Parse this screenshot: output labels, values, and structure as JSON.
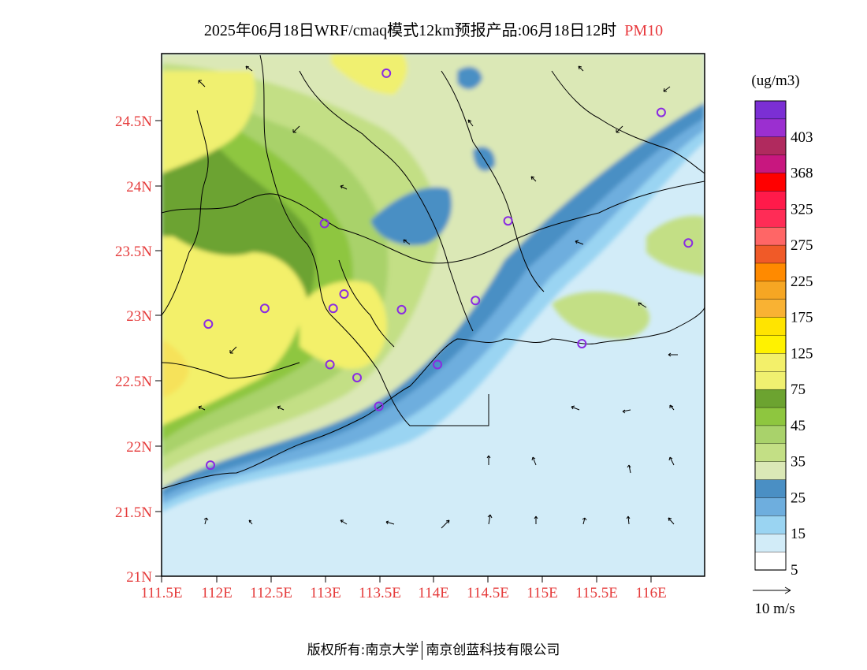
{
  "title": {
    "main": "2025年06月18日WRF/cmaq模式12km预报产品:06月18日12时",
    "variable": "PM10"
  },
  "axes": {
    "lat_ticks": [
      "24.5N",
      "24N",
      "23.5N",
      "23N",
      "22.5N",
      "22N",
      "21.5N",
      "21N"
    ],
    "lon_ticks": [
      "111.5E",
      "112E",
      "112.5E",
      "113E",
      "113.5E",
      "114E",
      "114.5E",
      "115E",
      "115.5E",
      "116E"
    ]
  },
  "colorbar": {
    "unit": "(ug/m3)",
    "labels": [
      "403",
      "368",
      "325",
      "275",
      "225",
      "175",
      "125",
      "75",
      "45",
      "35",
      "25",
      "15",
      "5"
    ],
    "colors": [
      "#7b2fd4",
      "#9b2fd0",
      "#b02a5e",
      "#c8177f",
      "#ff0000",
      "#ff1a4a",
      "#ff2c56",
      "#ff6666",
      "#f05a28",
      "#ff8a00",
      "#f6a623",
      "#f9b233",
      "#ffe400",
      "#fff200",
      "#f3f06a",
      "#f0f070",
      "#6ca330",
      "#8ec63f",
      "#a9d26b",
      "#c3df85",
      "#dbe8b6",
      "#4a8fc4",
      "#6eaede",
      "#9ad4f2",
      "#d2ecf8",
      "#ffffff"
    ]
  },
  "wind_legend": {
    "label": "10 m/s"
  },
  "sites": [
    {
      "lat": 24.85,
      "lon": 113.57
    },
    {
      "lat": 24.55,
      "lon": 116.1
    },
    {
      "lat": 23.72,
      "lon": 114.69
    },
    {
      "lat": 23.7,
      "lon": 113.0
    },
    {
      "lat": 23.55,
      "lon": 116.35
    },
    {
      "lat": 23.16,
      "lon": 113.18
    },
    {
      "lat": 23.11,
      "lon": 114.39
    },
    {
      "lat": 23.05,
      "lon": 112.45
    },
    {
      "lat": 23.05,
      "lon": 113.08
    },
    {
      "lat": 23.04,
      "lon": 113.71
    },
    {
      "lat": 22.93,
      "lon": 111.93
    },
    {
      "lat": 22.78,
      "lon": 115.37
    },
    {
      "lat": 22.62,
      "lon": 113.05
    },
    {
      "lat": 22.62,
      "lon": 114.04
    },
    {
      "lat": 22.52,
      "lon": 113.3
    },
    {
      "lat": 22.3,
      "lon": 113.5
    },
    {
      "lat": 21.85,
      "lon": 111.95
    }
  ],
  "footer": {
    "left": "版权所有:南京大学",
    "right": "南京创蓝科技有限公司"
  }
}
